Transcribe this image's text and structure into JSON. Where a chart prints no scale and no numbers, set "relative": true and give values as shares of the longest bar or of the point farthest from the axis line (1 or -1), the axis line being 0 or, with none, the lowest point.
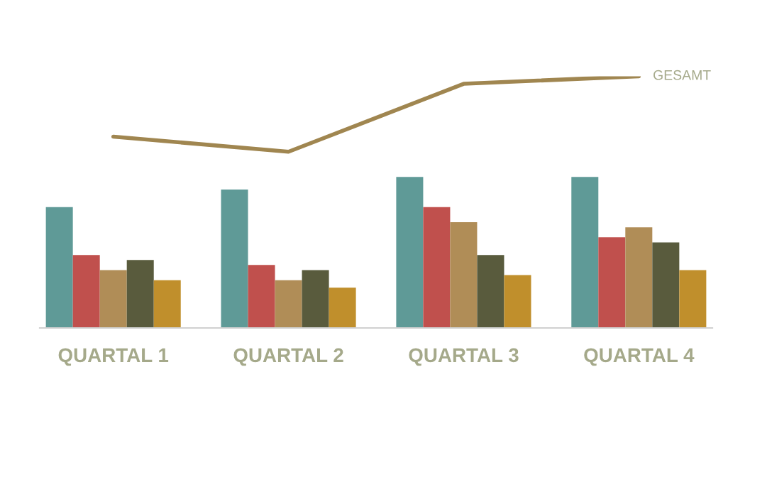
{
  "chart_data": {
    "type": "bar",
    "relative": true,
    "legend": false,
    "grid": false,
    "categories": [
      "QUARTAL 1",
      "QUARTAL 2",
      "QUARTAL 3",
      "QUARTAL 4"
    ],
    "series": [
      {
        "color": "#5f9a97",
        "values": [
          0.48,
          0.55,
          0.6,
          0.6
        ]
      },
      {
        "color": "#c0504d",
        "values": [
          0.29,
          0.25,
          0.48,
          0.36
        ]
      },
      {
        "color": "#b08d57",
        "values": [
          0.23,
          0.19,
          0.42,
          0.4
        ]
      },
      {
        "color": "#595b3d",
        "values": [
          0.27,
          0.23,
          0.29,
          0.34
        ]
      },
      {
        "color": "#c08f2c",
        "values": [
          0.19,
          0.16,
          0.21,
          0.23
        ]
      },
      {
        "type": "line",
        "name": "GESAMT",
        "color": "#a08650",
        "values": [
          0.76,
          0.7,
          0.97,
          1
        ]
      }
    ]
  }
}
